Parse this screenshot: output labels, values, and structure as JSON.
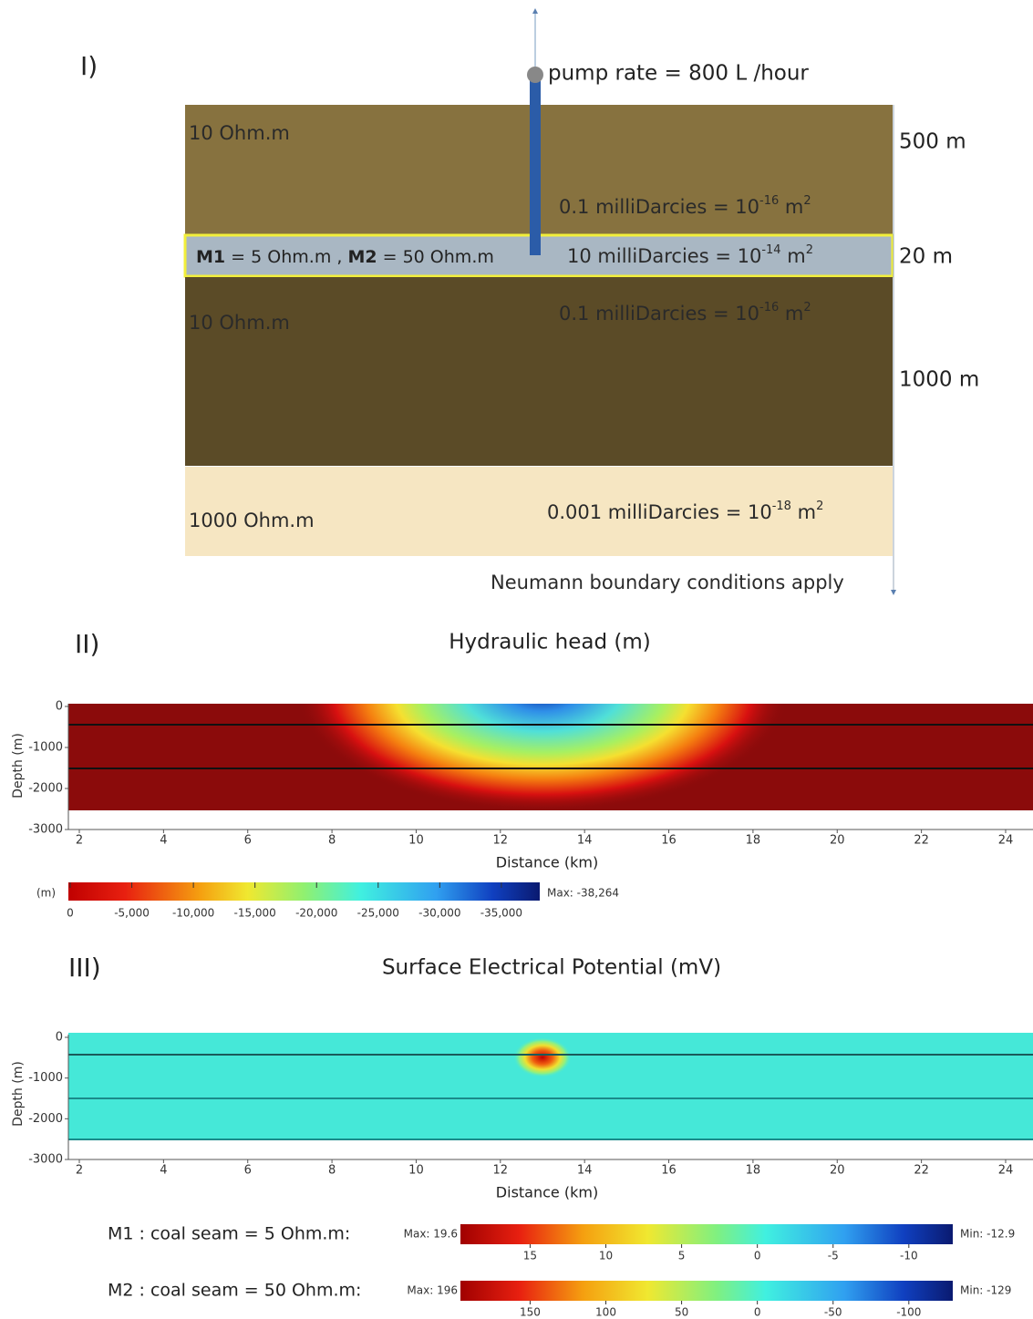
{
  "panel1": {
    "label": "I)",
    "pump": "pump rate = 800 L /hour",
    "top_layer": {
      "resistivity": "10 Ohm.m",
      "permeability": [
        "0.1 milliDarcies = 10",
        "-16",
        " m",
        "2"
      ],
      "thickness": "500 m"
    },
    "seam": {
      "resistivity": [
        "M1",
        " = 5 Ohm.m , ",
        "M2",
        " = 50 Ohm.m"
      ],
      "permeability": [
        "10 milliDarcies = 10",
        "-14",
        " m",
        "2"
      ],
      "thickness": "20 m"
    },
    "lower_layer": {
      "resistivity": "10 Ohm.m",
      "permeability": [
        "0.1 milliDarcies = 10",
        "-16",
        " m",
        "2"
      ],
      "thickness": "1000 m"
    },
    "basement": {
      "resistivity": "1000 Ohm.m",
      "permeability": [
        "0.001 milliDarcies = 10",
        "-18",
        " m",
        "2"
      ]
    },
    "boundary": "Neumann boundary conditions apply"
  },
  "panel2": {
    "label": "II)",
    "title": "Hydraulic head (m)",
    "ylabel": "Depth (m)",
    "xlabel": "Distance (km)",
    "xlim": [
      1.74,
      24.65
    ],
    "ylim": [
      0,
      -3000
    ],
    "xticks": [
      2,
      4,
      6,
      8,
      10,
      12,
      14,
      16,
      18,
      20,
      22,
      24
    ],
    "yticks": [
      0,
      -1000,
      -2000,
      -3000
    ],
    "colorbar": {
      "unit": "(m)",
      "ticks": [
        0,
        {
          "value": -5000,
          "label": "-5,000"
        },
        {
          "value": -10000,
          "label": "-10,000"
        },
        {
          "value": -15000,
          "label": "-15,000"
        },
        {
          "value": -20000,
          "label": "-20,000"
        },
        {
          "value": -25000,
          "label": "-25,000"
        },
        {
          "value": -30000,
          "label": "-30,000"
        },
        {
          "value": -35000,
          "label": "-35,000"
        }
      ],
      "max": {
        "value": -38264,
        "label": "Max: -38,264"
      }
    }
  },
  "panel3": {
    "label": "III)",
    "title": "Surface Electrical Potential (mV)",
    "ylabel": "Depth (m)",
    "xlabel": "Distance (km)",
    "xlim": [
      1.74,
      24.65
    ],
    "ylim": [
      0,
      -3000
    ],
    "xticks": [
      2,
      4,
      6,
      8,
      10,
      12,
      14,
      16,
      18,
      20,
      22,
      24
    ],
    "yticks": [
      0,
      -1000,
      -2000,
      -3000
    ],
    "colorbars": [
      {
        "name": "M1 : coal seam = 5 Ohm.m:",
        "max": {
          "value": 19.6,
          "label": "Max: 19.6"
        },
        "min": {
          "value": -12.9,
          "label": "Min: -12.9"
        },
        "ticks": [
          15,
          10,
          5,
          0,
          -5,
          -10
        ]
      },
      {
        "name": "M2 : coal seam = 50 Ohm.m:",
        "max": {
          "value": 196,
          "label": "Max: 196"
        },
        "min": {
          "value": -129,
          "label": "Min: -129"
        },
        "ticks": [
          150,
          100,
          50,
          0,
          -50,
          -100
        ]
      }
    ]
  }
}
